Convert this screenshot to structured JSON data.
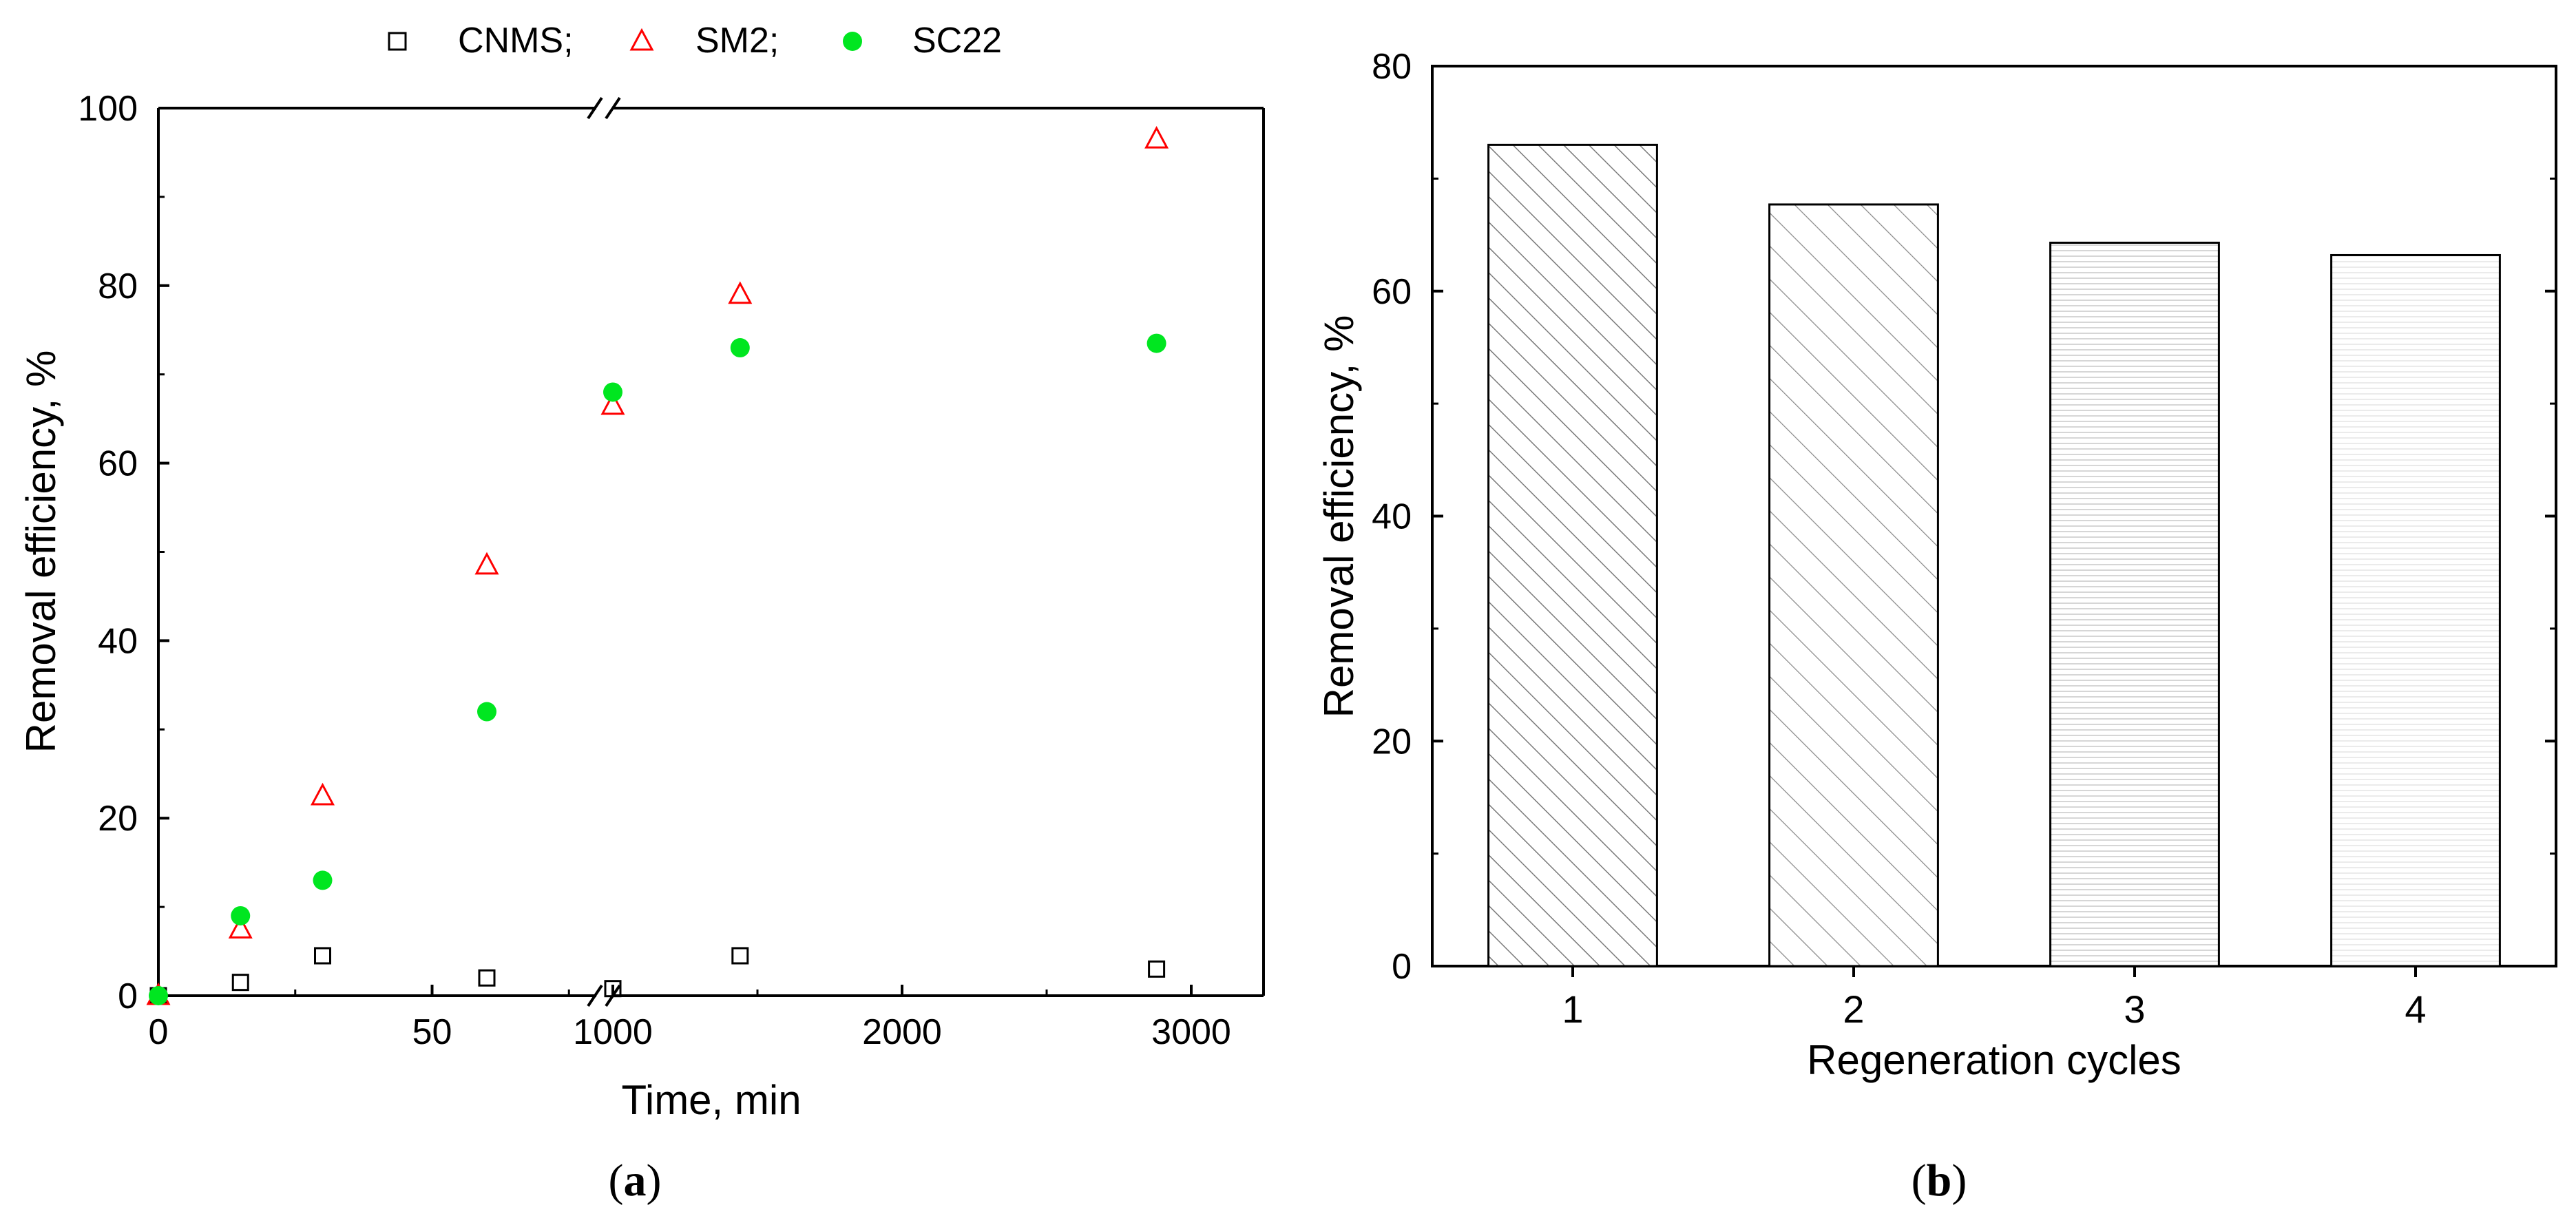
{
  "chart_data": [
    {
      "id": "a",
      "type": "scatter",
      "caption_label": "a",
      "xlabel": "Time, min",
      "ylabel": "Removal efficiency, %",
      "ylim": [
        0,
        100
      ],
      "yticks": [
        "0",
        "20",
        "40",
        "60",
        "80",
        "100"
      ],
      "x_segments": [
        {
          "range": [
            0,
            80
          ],
          "ticks": [
            0,
            50
          ],
          "tick_labels": [
            "0",
            "50"
          ]
        },
        {
          "range": [
            1000,
            3250
          ],
          "ticks": [
            1000,
            2000,
            3000
          ],
          "tick_labels": [
            "1000",
            "2000",
            "3000"
          ]
        }
      ],
      "axis_break": true,
      "legend": {
        "position": "top",
        "entries": [
          "CNMS;",
          "SM2;",
          "SC22"
        ]
      },
      "series": [
        {
          "name": "CNMS",
          "marker": "open-square",
          "color": "#000000",
          "points": [
            [
              0,
              0
            ],
            [
              15,
              1.5
            ],
            [
              30,
              4.5
            ],
            [
              60,
              2
            ],
            [
              1000,
              0.8
            ],
            [
              1440,
              4.5
            ],
            [
              2880,
              3
            ]
          ]
        },
        {
          "name": "SM2",
          "marker": "open-triangle",
          "color": "#ff0000",
          "points": [
            [
              0,
              0
            ],
            [
              15,
              7.5
            ],
            [
              30,
              22.5
            ],
            [
              60,
              48.5
            ],
            [
              1000,
              66.5
            ],
            [
              1440,
              79
            ],
            [
              2880,
              96.5
            ]
          ]
        },
        {
          "name": "SC22",
          "marker": "filled-circle",
          "color": "#00e620",
          "points": [
            [
              0,
              0
            ],
            [
              15,
              9
            ],
            [
              30,
              13
            ],
            [
              60,
              32
            ],
            [
              1000,
              68
            ],
            [
              1440,
              73
            ],
            [
              2880,
              73.5
            ]
          ]
        }
      ]
    },
    {
      "id": "b",
      "type": "bar",
      "caption_label": "b",
      "xlabel": "Regeneration cycles",
      "ylabel": "Removal efficiency, %",
      "ylim": [
        0,
        80
      ],
      "yticks": [
        "0",
        "20",
        "40",
        "60",
        "80"
      ],
      "categories": [
        "1",
        "2",
        "3",
        "4"
      ],
      "values": [
        73,
        67.7,
        64.3,
        63.2
      ],
      "patterns": [
        "diagonal-dense",
        "diagonal-sparse",
        "horizontal",
        "light-horizontal"
      ]
    }
  ]
}
